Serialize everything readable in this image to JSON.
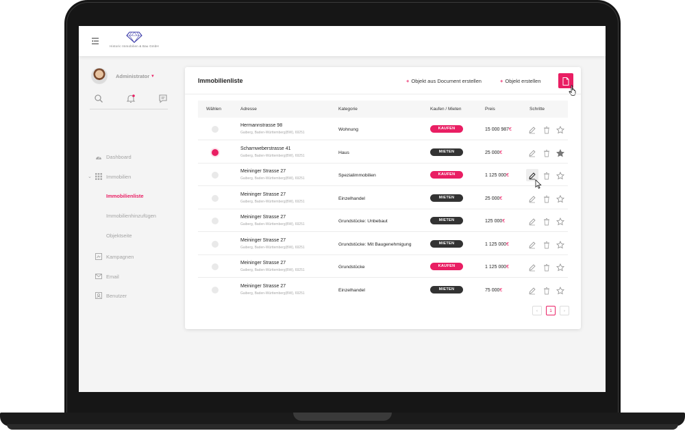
{
  "brand": {
    "tagline": "Historic Immobilien & Bau GmbH"
  },
  "user": {
    "name": "Administrator"
  },
  "sidebar": {
    "items": [
      {
        "label": "Dashboard"
      },
      {
        "label": "Immobilien"
      },
      {
        "label": "Kampagnen"
      },
      {
        "label": "Email"
      },
      {
        "label": "Benutzer"
      }
    ],
    "subitems": [
      {
        "label": "Immobilienliste",
        "active": true
      },
      {
        "label": "Immobilienhinzufügen"
      },
      {
        "label": "Objektseite"
      }
    ]
  },
  "card": {
    "title": "Immobilienliste",
    "action_document": "Objekt aus Document erstellen",
    "action_object": "Objekt erstellen",
    "plus": "+"
  },
  "table": {
    "headers": {
      "select": "Wählen",
      "address": "Adresse",
      "category": "Kategorie",
      "buy_rent": "Kaufen / Mieten",
      "price": "Preis",
      "steps": "Schritte"
    },
    "currency": "€",
    "rows": [
      {
        "street": "Hermannstrasse 98",
        "city": "Gaiberg, Baden-Württemberg(BW), 69251",
        "category": "Wohnung",
        "type": "KAUFEN",
        "price": "15 000 987",
        "selected": false,
        "starred": false
      },
      {
        "street": "Scharnweberstrasse 41",
        "city": "Gaiberg, Baden-Württemberg(BW), 69251",
        "category": "Haus",
        "type": "MIETEN",
        "price": "25 000",
        "selected": true,
        "starred": true
      },
      {
        "street": "Meininger Strasse 27",
        "city": "Gaiberg, Baden-Württemberg(BW), 69251",
        "category": "Spezialimmobilien",
        "type": "KAUFEN",
        "price": "1 125 000",
        "selected": false,
        "starred": false
      },
      {
        "street": "Meininger Strasse 27",
        "city": "Gaiberg, Baden-Württemberg(BW), 69251",
        "category": "Einzelhandel",
        "type": "MIETEN",
        "price": "25 000",
        "selected": false,
        "starred": false
      },
      {
        "street": "Meininger Strasse 27",
        "city": "Gaiberg, Baden-Württemberg(BW), 69251",
        "category": "Grundstücke: Unbebaut",
        "type": "MIETEN",
        "price": "125 000",
        "selected": false,
        "starred": false
      },
      {
        "street": "Meininger Strasse 27",
        "city": "Gaiberg, Baden-Württemberg(BW), 69251",
        "category": "Grundstücke: Mit Baugenehmigung",
        "type": "MIETEN",
        "price": "1 125 000",
        "selected": false,
        "starred": false
      },
      {
        "street": "Meininger Strasse 27",
        "city": "Gaiberg, Baden-Württemberg(BW), 69251",
        "category": "Grundstücke",
        "type": "KAUFEN",
        "price": "1 125 000",
        "selected": false,
        "starred": false
      },
      {
        "street": "Meininger Strasse 27",
        "city": "Gaiberg, Baden-Württemberg(BW), 69251",
        "category": "Einzelhandel",
        "type": "MIETEN",
        "price": "75 000",
        "selected": false,
        "starred": false
      }
    ]
  },
  "pagination": {
    "prev": "‹",
    "current": "1",
    "next": "›"
  },
  "colors": {
    "accent": "#e91e63",
    "dark_badge": "#333333"
  },
  "icons": [
    "menu-toggle-icon",
    "diamond-logo-icon",
    "search-icon",
    "bell-icon",
    "chat-icon",
    "dashboard-icon",
    "grid-icon",
    "campaign-icon",
    "email-icon",
    "user-icon",
    "file-export-icon",
    "edit-icon",
    "trash-icon",
    "star-icon",
    "hand-cursor-icon",
    "arrow-cursor-icon"
  ]
}
